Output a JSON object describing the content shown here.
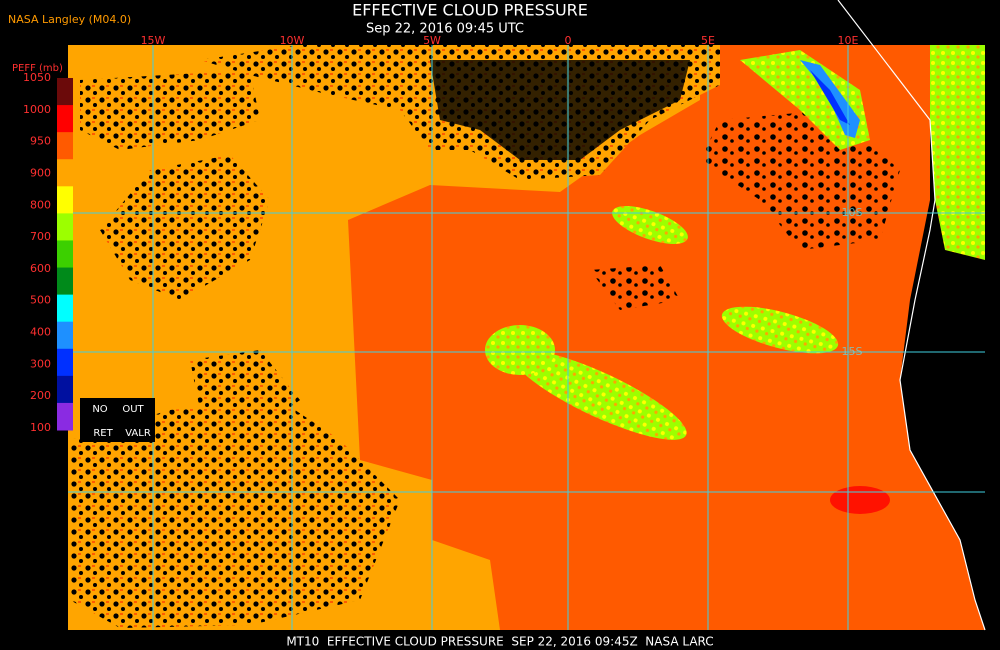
{
  "header": {
    "source": "NASA Langley (M04.0)",
    "title": "EFFECTIVE CLOUD PRESSURE",
    "subtitle": "Sep 22, 2016 09:45 UTC"
  },
  "map": {
    "longitude_labels": [
      "15W",
      "10W",
      "5W",
      "0",
      "5E",
      "10E"
    ],
    "latitude_labels": [
      "10S",
      "15S"
    ]
  },
  "legend": {
    "title": "PEFF (mb)",
    "ticks": [
      1050,
      1000,
      950,
      900,
      800,
      700,
      600,
      500,
      400,
      300,
      200,
      100
    ],
    "colors": [
      "#6b0a0a",
      "#ff0000",
      "#ff5a00",
      "#ffa500",
      "#ffff00",
      "#9cff00",
      "#3cd000",
      "#008a1a",
      "#00ffff",
      "#1e90ff",
      "#0030ff",
      "#0010a0",
      "#8a2be2"
    ],
    "flags": [
      "NO",
      "OUT",
      "RET",
      "VALR"
    ]
  },
  "footer": "MT10  EFFECTIVE CLOUD PRESSURE  SEP 22, 2016 09:45Z  NASA LARC"
}
